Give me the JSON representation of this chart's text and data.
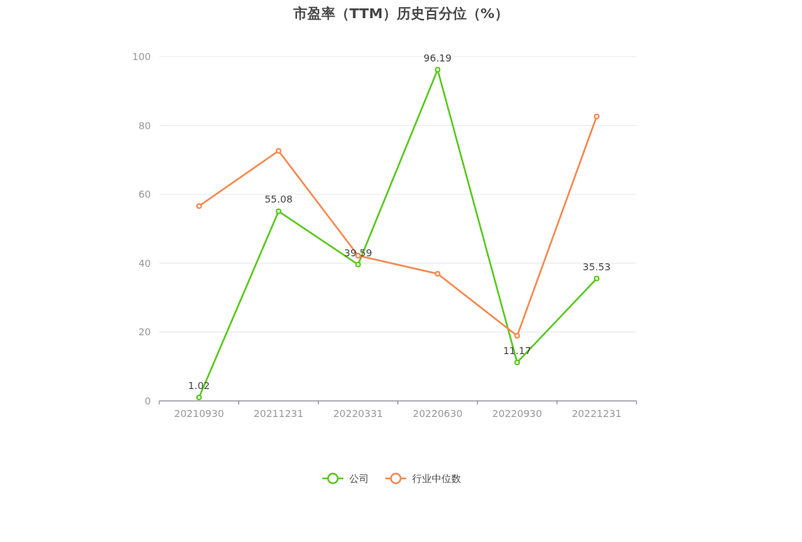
{
  "chart_data": {
    "type": "line",
    "title": "市盈率（TTM）历史百分位（%）",
    "categories": [
      "20210930",
      "20211231",
      "20220331",
      "20220630",
      "20220930",
      "20221231"
    ],
    "series": [
      {
        "name": "公司",
        "color": "#5ac81f",
        "values": [
          1.02,
          55.08,
          39.59,
          96.19,
          11.17,
          35.53
        ],
        "value_labels": [
          "1.02",
          "55.08",
          "39.59",
          "96.19",
          "11.17",
          "35.53"
        ]
      },
      {
        "name": "行业中位数",
        "color": "#f5894f",
        "values": [
          56.6,
          72.6,
          42.2,
          36.9,
          18.9,
          82.6
        ]
      }
    ],
    "ylim": [
      0,
      100
    ],
    "yticks": [
      0,
      20,
      40,
      60,
      80,
      100
    ],
    "grid": "y",
    "legend": "bottom",
    "marker": "circle",
    "line_style": "solid"
  }
}
